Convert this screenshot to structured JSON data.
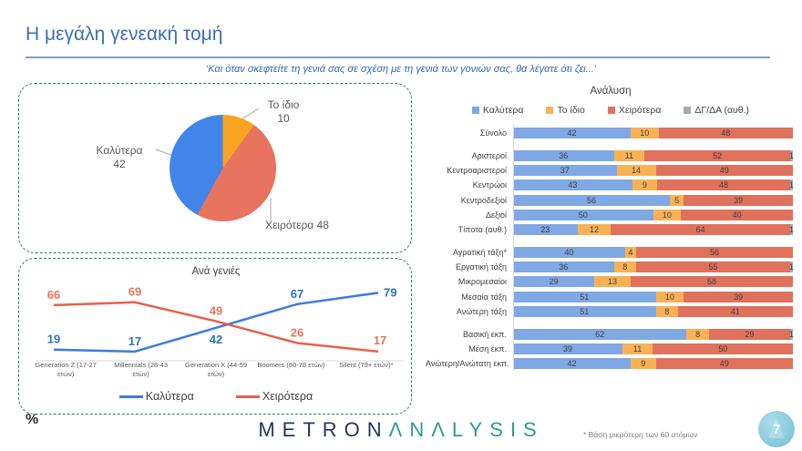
{
  "slide": {
    "title": "Η μεγάλη γενεακή τομή",
    "question": "‘Και όταν σκεφτείτε τη γενιά σας σε σχέση με τη γενιά των γονιών σας, θα λέγατε ότι ζει...’",
    "percent_symbol": "%",
    "footnote": "* Βάση μικρότερη των 60 ατόμων",
    "page_number": "7",
    "logo_part1": "METRON",
    "logo_part2": "ΛNΛLYSIS"
  },
  "colors": {
    "title_blue": "#3e6db5",
    "box_border": "#2f7b6b",
    "pie_better": "#4285e8",
    "pie_same": "#f9a322",
    "pie_worse": "#e8735f",
    "bar_better": "#7fa8e4",
    "bar_same": "#f9b155",
    "bar_worse": "#e0715c",
    "bar_dk": "#a8a8a8",
    "line_better": "#3d7bde",
    "line_worse": "#e8604c",
    "label_better": "#2e74b5",
    "label_worse": "#e8735c"
  },
  "chart_data": [
    {
      "id": "pie-overall",
      "type": "pie",
      "slices": [
        {
          "label": "Καλύτερα",
          "value": 42,
          "color_key": "pie_better"
        },
        {
          "label": "Το ίδιο",
          "value": 10,
          "color_key": "pie_same"
        },
        {
          "label": "Χειρότερα",
          "value": 48,
          "color_key": "pie_worse"
        }
      ]
    },
    {
      "id": "generations-line",
      "type": "line",
      "title": "Ανά γενιές",
      "categories": [
        "Generation Z (17-27 ετών)",
        "Millennials (28-43 ετών)",
        "Generation X (44-59 ετών)",
        "Boomers (60-78 ετών)",
        "Silent (79+ ετών)*"
      ],
      "series": [
        {
          "name": "Καλύτερα",
          "values": [
            19,
            17,
            42,
            67,
            79
          ],
          "color_key": "line_better",
          "label_color_key": "label_better"
        },
        {
          "name": "Χειρότερα",
          "values": [
            66,
            69,
            49,
            26,
            17
          ],
          "color_key": "line_worse",
          "label_color_key": "label_worse"
        }
      ],
      "ylim": [
        0,
        100
      ],
      "legend_position": "bottom",
      "grid": false
    },
    {
      "id": "analysis-stacked-bar",
      "type": "bar",
      "orientation": "horizontal",
      "stacked": true,
      "title": "Ανάλυση",
      "legend": [
        "Καλύτερα",
        "Το ίδιο",
        "Χειρότερα",
        "ΔΓ/ΔΑ (αυθ.)"
      ],
      "series_color_keys": [
        "bar_better",
        "bar_same",
        "bar_worse",
        "bar_dk"
      ],
      "groups": [
        [
          {
            "label": "Σύνολο",
            "values": [
              42,
              10,
              48,
              0
            ]
          }
        ],
        [
          {
            "label": "Αριστεροί",
            "values": [
              36,
              11,
              52,
              1
            ]
          },
          {
            "label": "Κεντροαριστεροί",
            "values": [
              37,
              14,
              49,
              0
            ]
          },
          {
            "label": "Κεντρώοι",
            "values": [
              43,
              9,
              48,
              1
            ]
          },
          {
            "label": "Κεντροδεξιοί",
            "values": [
              56,
              5,
              39,
              0
            ]
          },
          {
            "label": "Δεξιοί",
            "values": [
              50,
              10,
              40,
              0
            ]
          },
          {
            "label": "Τίποτα (αυθ.)",
            "values": [
              23,
              12,
              64,
              1
            ]
          }
        ],
        [
          {
            "label": "Αγροτική τάξη*",
            "values": [
              40,
              4,
              56,
              0
            ]
          },
          {
            "label": "Εργατική τάξη",
            "values": [
              36,
              8,
              55,
              1
            ]
          },
          {
            "label": "Μικρομεσαίοι",
            "values": [
              29,
              13,
              58,
              0
            ]
          },
          {
            "label": "Μεσαία τάξη",
            "values": [
              51,
              10,
              39,
              0
            ]
          },
          {
            "label": "Ανώτερη τάξη",
            "values": [
              51,
              8,
              41,
              0
            ]
          }
        ],
        [
          {
            "label": "Βασική εκπ.",
            "values": [
              62,
              8,
              29,
              1
            ]
          },
          {
            "label": "Μέση εκπ.",
            "values": [
              39,
              11,
              50,
              0
            ]
          },
          {
            "label": "Ανώτερη/Ανώτατη εκπ.",
            "values": [
              42,
              9,
              49,
              0
            ]
          }
        ]
      ]
    }
  ]
}
